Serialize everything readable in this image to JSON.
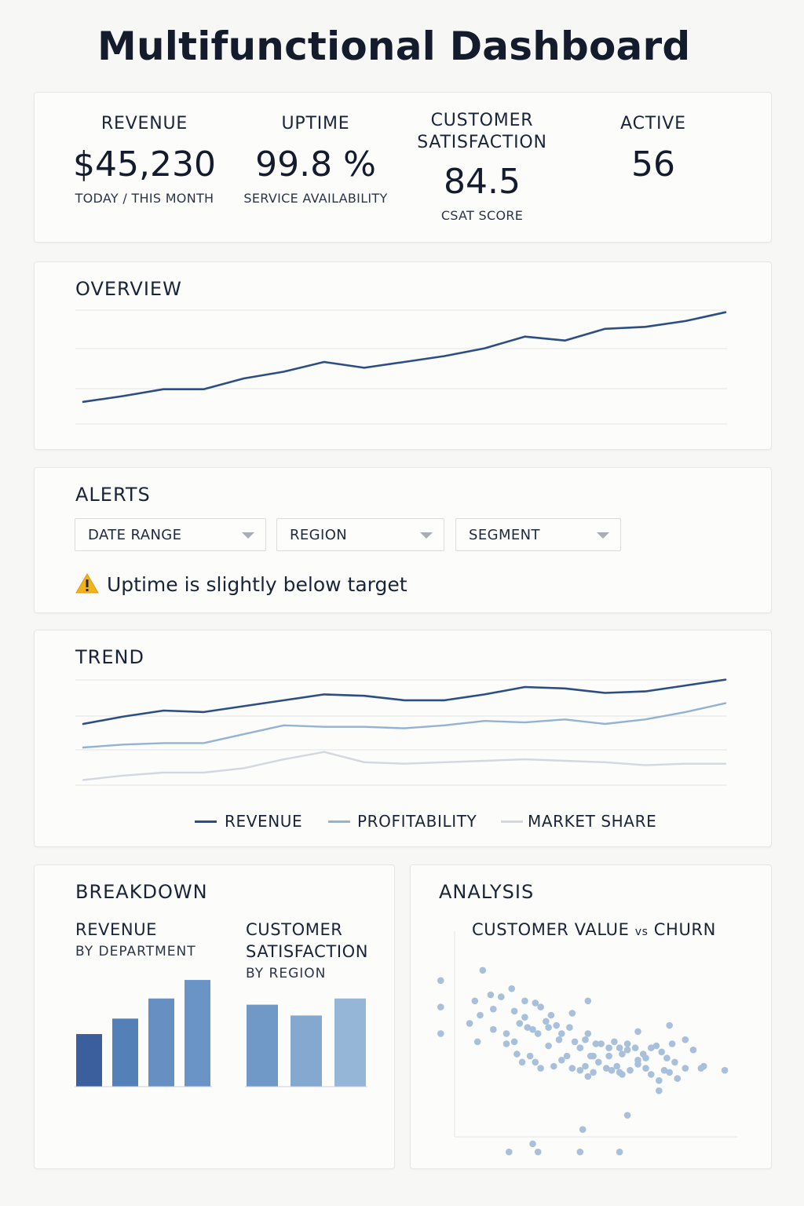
{
  "page": {
    "title": "Multifunctional Dashboard"
  },
  "kpis": [
    {
      "label": "REVENUE",
      "value": "$45,230",
      "sub": "TODAY / THIS MONTH"
    },
    {
      "label": "UPTIME",
      "value": "99.8 %",
      "sub": "SERVICE AVAILABILITY"
    },
    {
      "label_line1": "CUSTOMER",
      "label_line2": "SATISFACTION",
      "value": "84.5",
      "sub": "CSAT SCORE"
    },
    {
      "label": "ACTIVE",
      "value": "56",
      "sub": ""
    }
  ],
  "overview": {
    "title": "OVERVIEW"
  },
  "alerts": {
    "title": "ALERTS",
    "filters": [
      {
        "label": "DATE RANGE",
        "icon": "chevron-down-icon"
      },
      {
        "label": "REGION",
        "icon": "chevron-down-icon"
      },
      {
        "label": "SEGMENT",
        "icon": "chevron-down-icon"
      }
    ],
    "message": "Uptime is slightly below target",
    "message_icon": "warning-icon",
    "warning_color": "#f2b21b"
  },
  "trend": {
    "title": "TREND",
    "legend": [
      "REVENUE",
      "PROFITABILITY",
      "MARKET SHARE"
    ]
  },
  "breakdown": {
    "title": "BREAKDOWN",
    "left": {
      "title": "REVENUE",
      "subtitle": "BY DEPARTMENT"
    },
    "right": {
      "title_line1": "CUSTOMER",
      "title_line2": "SATISFACTION",
      "subtitle": "BY REGION"
    }
  },
  "analysis": {
    "title": "ANALYSIS",
    "chart_title_a": "CUSTOMER VALUE ",
    "chart_title_vs": "vs",
    "chart_title_b": " CHURN"
  },
  "colors": {
    "navy": "#2c4e86",
    "mid_blue": "#93b3d4",
    "light_gray": "#d3d7df",
    "scatter": "#a8c0da"
  },
  "chart_data": [
    {
      "type": "line",
      "id": "overview",
      "x": [
        1,
        2,
        3,
        4,
        5,
        6,
        7,
        8,
        9,
        10,
        11,
        12,
        13,
        14,
        15,
        16,
        17
      ],
      "series": [
        {
          "values": [
            5,
            11,
            18,
            18,
            29,
            36,
            46,
            40,
            46,
            52,
            60,
            72,
            68,
            80,
            82,
            88,
            97
          ]
        }
      ],
      "ylim": [
        0,
        100
      ]
    },
    {
      "type": "line",
      "id": "trend",
      "x": [
        1,
        2,
        3,
        4,
        5,
        6,
        7,
        8,
        9,
        10,
        11,
        12,
        13,
        14,
        15,
        16,
        17
      ],
      "series": [
        {
          "name": "REVENUE",
          "values": [
            58,
            63,
            67,
            66,
            70,
            74,
            78,
            77,
            74,
            74,
            78,
            83,
            82,
            79,
            80,
            84,
            88
          ]
        },
        {
          "name": "PROFITABILITY",
          "values": [
            42,
            44,
            45,
            45,
            51,
            57,
            56,
            56,
            55,
            57,
            60,
            59,
            61,
            58,
            61,
            66,
            72
          ]
        },
        {
          "name": "MARKET SHARE",
          "values": [
            20,
            23,
            25,
            25,
            28,
            34,
            39,
            32,
            31,
            32,
            33,
            34,
            33,
            32,
            30,
            31,
            31
          ]
        }
      ],
      "ylim": [
        0,
        100
      ]
    },
    {
      "type": "bar",
      "id": "revenue-by-department",
      "categories": [
        "",
        "",
        "",
        ""
      ],
      "values": [
        34,
        44,
        57,
        69
      ],
      "ylim": [
        0,
        100
      ]
    },
    {
      "type": "bar",
      "id": "satisfaction-by-region",
      "categories": [
        "",
        "",
        ""
      ],
      "values": [
        53,
        46,
        57
      ],
      "ylim": [
        0,
        100
      ]
    },
    {
      "type": "scatter",
      "id": "customer-value-vs-churn",
      "xlim": [
        0,
        100
      ],
      "ylim": [
        0,
        100
      ],
      "points": [
        [
          -5,
          82
        ],
        [
          -5,
          69
        ],
        [
          -5,
          56
        ],
        [
          11,
          87
        ],
        [
          8,
          72
        ],
        [
          10,
          65
        ],
        [
          14,
          75
        ],
        [
          18,
          74
        ],
        [
          15,
          68
        ],
        [
          6,
          61
        ],
        [
          15,
          58
        ],
        [
          9,
          52
        ],
        [
          20,
          56
        ],
        [
          22,
          78
        ],
        [
          23,
          67
        ],
        [
          27,
          72
        ],
        [
          27,
          64
        ],
        [
          25,
          61
        ],
        [
          28,
          59
        ],
        [
          31,
          71
        ],
        [
          33,
          69
        ],
        [
          30,
          58
        ],
        [
          32,
          56
        ],
        [
          35,
          62
        ],
        [
          36,
          59
        ],
        [
          37,
          65
        ],
        [
          39,
          60
        ],
        [
          41,
          56
        ],
        [
          40,
          53
        ],
        [
          44,
          59
        ],
        [
          45,
          66
        ],
        [
          46,
          52
        ],
        [
          48,
          49
        ],
        [
          50,
          53
        ],
        [
          51,
          56
        ],
        [
          54,
          51
        ],
        [
          52,
          45
        ],
        [
          53,
          45
        ],
        [
          56,
          51
        ],
        [
          59,
          49
        ],
        [
          59,
          45
        ],
        [
          61,
          52
        ],
        [
          63,
          49
        ],
        [
          64,
          46
        ],
        [
          66,
          51
        ],
        [
          66,
          48
        ],
        [
          69,
          49
        ],
        [
          70,
          43
        ],
        [
          72,
          46
        ],
        [
          73,
          44
        ],
        [
          75,
          49
        ],
        [
          77,
          50
        ],
        [
          79,
          47
        ],
        [
          81,
          44
        ],
        [
          83,
          51
        ],
        [
          84,
          42
        ],
        [
          88,
          53
        ],
        [
          91,
          48
        ],
        [
          95,
          40
        ],
        [
          23,
          52
        ],
        [
          20,
          51
        ],
        [
          24,
          46
        ],
        [
          26,
          42
        ],
        [
          29,
          45
        ],
        [
          31,
          42
        ],
        [
          33,
          39
        ],
        [
          36,
          50
        ],
        [
          38,
          40
        ],
        [
          41,
          43
        ],
        [
          43,
          45
        ],
        [
          45,
          39
        ],
        [
          48,
          38
        ],
        [
          50,
          40
        ],
        [
          51,
          35
        ],
        [
          53,
          37
        ],
        [
          55,
          42
        ],
        [
          58,
          39
        ],
        [
          60,
          38
        ],
        [
          62,
          40
        ],
        [
          64,
          36
        ],
        [
          67,
          38
        ],
        [
          70,
          41
        ],
        [
          73,
          39
        ],
        [
          75,
          36
        ],
        [
          78,
          33
        ],
        [
          80,
          38
        ],
        [
          82,
          37
        ],
        [
          85,
          34
        ],
        [
          88,
          39
        ],
        [
          94,
          39
        ],
        [
          103,
          38
        ],
        [
          78,
          28
        ],
        [
          63,
          37
        ],
        [
          51,
          72
        ],
        [
          70,
          57
        ],
        [
          82,
          60
        ],
        [
          21,
          -2
        ],
        [
          32,
          -2
        ],
        [
          48,
          -2
        ],
        [
          63,
          -2
        ],
        [
          66,
          16
        ],
        [
          49,
          9
        ],
        [
          30,
          2
        ]
      ]
    }
  ]
}
